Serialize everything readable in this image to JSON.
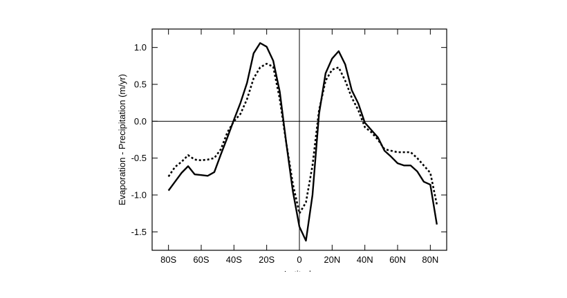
{
  "chart_data": {
    "type": "line",
    "y_label": "Evaporation - Precipitation (m/yr)",
    "x_label": "Latitude",
    "x": [
      -80,
      -76,
      -72,
      -68,
      -64,
      -60,
      -56,
      -52,
      -48,
      -44,
      -40,
      -36,
      -32,
      -28,
      -24,
      -20,
      -16,
      -12,
      -8,
      -4,
      0,
      4,
      8,
      12,
      16,
      20,
      24,
      28,
      32,
      36,
      40,
      44,
      48,
      52,
      56,
      60,
      64,
      68,
      72,
      76,
      80,
      84
    ],
    "series": [
      {
        "color": "#000000",
        "dash": "solid",
        "values": [
          -0.94,
          -0.82,
          -0.7,
          -0.61,
          -0.72,
          -0.73,
          -0.74,
          -0.69,
          -0.45,
          -0.22,
          0.02,
          0.25,
          0.52,
          0.92,
          1.06,
          1.01,
          0.82,
          0.4,
          -0.3,
          -0.95,
          -1.43,
          -1.62,
          -1.0,
          0.1,
          0.65,
          0.85,
          0.95,
          0.77,
          0.42,
          0.24,
          -0.02,
          -0.12,
          -0.22,
          -0.4,
          -0.48,
          -0.57,
          -0.6,
          -0.6,
          -0.68,
          -0.82,
          -0.86,
          -1.4
        ]
      },
      {
        "color": "#000000",
        "dash": "dotted",
        "values": [
          -0.75,
          -0.62,
          -0.55,
          -0.46,
          -0.52,
          -0.53,
          -0.52,
          -0.5,
          -0.38,
          -0.15,
          0.0,
          0.1,
          0.3,
          0.58,
          0.73,
          0.78,
          0.74,
          0.3,
          -0.3,
          -0.85,
          -1.25,
          -1.1,
          -0.6,
          0.15,
          0.55,
          0.7,
          0.73,
          0.55,
          0.32,
          0.15,
          -0.08,
          -0.15,
          -0.25,
          -0.38,
          -0.4,
          -0.42,
          -0.42,
          -0.42,
          -0.5,
          -0.6,
          -0.7,
          -1.13
        ]
      }
    ],
    "xlim": [
      -90,
      90
    ],
    "ylim": [
      -1.75,
      1.25
    ],
    "xticks": [
      {
        "value": -80,
        "label": "80S"
      },
      {
        "value": -60,
        "label": "60S"
      },
      {
        "value": -40,
        "label": "40S"
      },
      {
        "value": -20,
        "label": "20S"
      },
      0,
      {
        "value": 20,
        "label": "20N"
      },
      {
        "value": 40,
        "label": "40N"
      },
      {
        "value": 60,
        "label": "60N"
      },
      {
        "value": 80,
        "label": "80N"
      }
    ],
    "yticks": [
      {
        "value": 1,
        "label": "1.0"
      },
      0.5,
      {
        "value": 0,
        "label": "0.0"
      },
      -0.5,
      {
        "value": -1,
        "label": "-1.0"
      },
      -1.5
    ],
    "hlines": [
      0
    ],
    "vlines": [
      0
    ]
  }
}
